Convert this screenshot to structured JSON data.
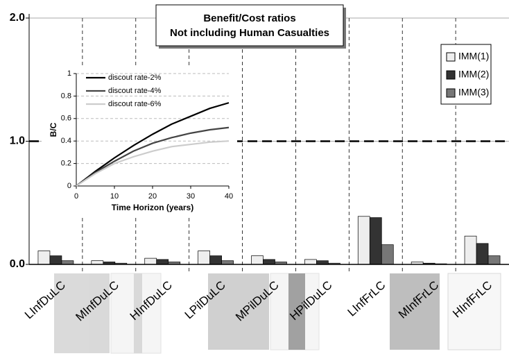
{
  "chart_data": [
    {
      "type": "bar",
      "title": [
        "Benefit/Cost ratios",
        "Not including Human Casualties"
      ],
      "categories": [
        "LInfDuLC",
        "MInfDuLC",
        "HInfDuLC",
        "LPilDuLC",
        "MPilDuLC",
        "HPilDuLC",
        "LInfFrLC",
        "MInfFrLC",
        "HInfFrLC"
      ],
      "series": [
        {
          "name": "IMM(1)",
          "color": "#eeeeee",
          "values": [
            0.11,
            0.03,
            0.05,
            0.11,
            0.07,
            0.04,
            0.39,
            0.02,
            0.23
          ]
        },
        {
          "name": "IMM(2)",
          "color": "#333333",
          "values": [
            0.07,
            0.02,
            0.04,
            0.07,
            0.04,
            0.03,
            0.38,
            0.01,
            0.17
          ]
        },
        {
          "name": "IMM(3)",
          "color": "#777777",
          "values": [
            0.03,
            0.01,
            0.02,
            0.03,
            0.02,
            0.01,
            0.16,
            0.005,
            0.07
          ]
        }
      ],
      "ylim": [
        0,
        2
      ],
      "yticks": [
        {
          "value": 0,
          "label": "0.0"
        },
        {
          "value": 1,
          "label": "1.0"
        },
        {
          "value": 2,
          "label": "2.0"
        }
      ],
      "reference_line": 1,
      "legend": "upper right"
    },
    {
      "type": "line",
      "x_label": "Time Horizon (years)",
      "y_label": "B/C",
      "x": [
        0,
        5,
        10,
        15,
        20,
        25,
        30,
        35,
        40
      ],
      "series": [
        {
          "name": "discout rate-2%",
          "color": "#000000",
          "values": [
            0,
            0.13,
            0.25,
            0.36,
            0.46,
            0.55,
            0.62,
            0.69,
            0.74
          ]
        },
        {
          "name": "discout rate-4%",
          "color": "#444444",
          "values": [
            0,
            0.12,
            0.22,
            0.31,
            0.38,
            0.43,
            0.47,
            0.5,
            0.52
          ]
        },
        {
          "name": "discout rate-6%",
          "color": "#cccccc",
          "values": [
            0,
            0.11,
            0.2,
            0.26,
            0.31,
            0.35,
            0.37,
            0.39,
            0.4
          ]
        }
      ],
      "xlim": [
        0,
        40
      ],
      "xticks": [
        0,
        10,
        20,
        30,
        40
      ],
      "ylim": [
        0,
        1
      ],
      "yticks": [
        0,
        0.2,
        0.4,
        0.6,
        0.8,
        1
      ],
      "grid": true,
      "legend": "upper left"
    }
  ]
}
